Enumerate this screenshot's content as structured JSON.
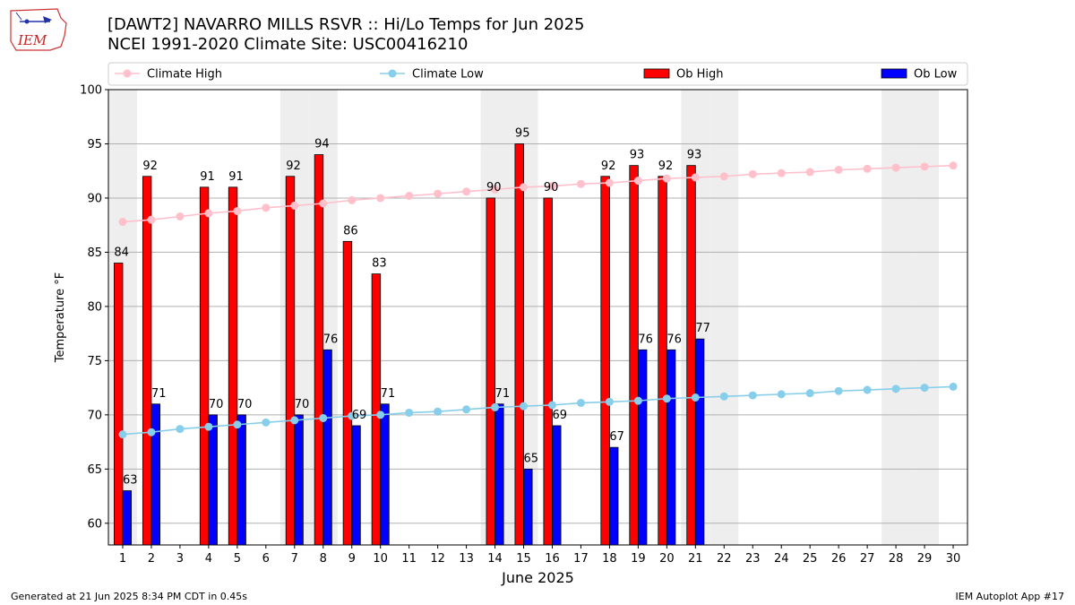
{
  "header": {
    "title_line1": "[DAWT2] NAVARRO MILLS RSVR :: Hi/Lo Temps for Jun 2025",
    "title_line2": "NCEI 1991-2020 Climate Site: USC00416210",
    "logo_text": "IEM"
  },
  "footer": {
    "generated": "Generated at 21 Jun 2025 8:34 PM CDT in 0.45s",
    "app": "IEM Autoplot App #17"
  },
  "colors": {
    "climate_high": "#ffc0cb",
    "climate_low": "#87ceeb",
    "ob_high": "#ff0000",
    "ob_low": "#0000ff",
    "weekend_shade": "#eeeeee",
    "grid": "#b0b0b0"
  },
  "chart_data": {
    "type": "bar",
    "xlabel": "June 2025",
    "ylabel": "Temperature °F",
    "ylim": [
      58,
      100
    ],
    "yticks": [
      60,
      65,
      70,
      75,
      80,
      85,
      90,
      95,
      100
    ],
    "grid": "horizontal",
    "legend_position": "top",
    "legend": [
      "Climate High",
      "Climate Low",
      "Ob High",
      "Ob Low"
    ],
    "weekend_days": [
      1,
      7,
      8,
      14,
      15,
      21,
      22,
      28,
      29
    ],
    "days": [
      1,
      2,
      3,
      4,
      5,
      6,
      7,
      8,
      9,
      10,
      11,
      12,
      13,
      14,
      15,
      16,
      17,
      18,
      19,
      20,
      21,
      22,
      23,
      24,
      25,
      26,
      27,
      28,
      29,
      30
    ],
    "series": [
      {
        "name": "Climate High",
        "kind": "line",
        "values": [
          87.8,
          88.0,
          88.3,
          88.6,
          88.8,
          89.1,
          89.3,
          89.5,
          89.8,
          90.0,
          90.2,
          90.4,
          90.6,
          90.8,
          91.0,
          91.1,
          91.3,
          91.4,
          91.6,
          91.8,
          91.9,
          92.0,
          92.2,
          92.3,
          92.4,
          92.6,
          92.7,
          92.8,
          92.9,
          93.0
        ]
      },
      {
        "name": "Climate Low",
        "kind": "line",
        "values": [
          68.2,
          68.4,
          68.7,
          68.9,
          69.1,
          69.3,
          69.5,
          69.7,
          69.9,
          70.0,
          70.2,
          70.3,
          70.5,
          70.7,
          70.8,
          70.9,
          71.1,
          71.2,
          71.3,
          71.5,
          71.6,
          71.7,
          71.8,
          71.9,
          72.0,
          72.2,
          72.3,
          72.4,
          72.5,
          72.6
        ]
      },
      {
        "name": "Ob High",
        "kind": "bar",
        "values": [
          84,
          92,
          null,
          91,
          91,
          null,
          92,
          94,
          86,
          83,
          null,
          null,
          null,
          90,
          95,
          90,
          null,
          92,
          93,
          92,
          93,
          null,
          null,
          null,
          null,
          null,
          null,
          null,
          null,
          null
        ]
      },
      {
        "name": "Ob Low",
        "kind": "bar",
        "values": [
          63,
          71,
          null,
          70,
          70,
          null,
          70,
          76,
          69,
          71,
          null,
          null,
          null,
          71,
          65,
          69,
          null,
          67,
          76,
          76,
          77,
          null,
          null,
          null,
          null,
          null,
          null,
          null,
          null,
          null
        ]
      }
    ]
  }
}
